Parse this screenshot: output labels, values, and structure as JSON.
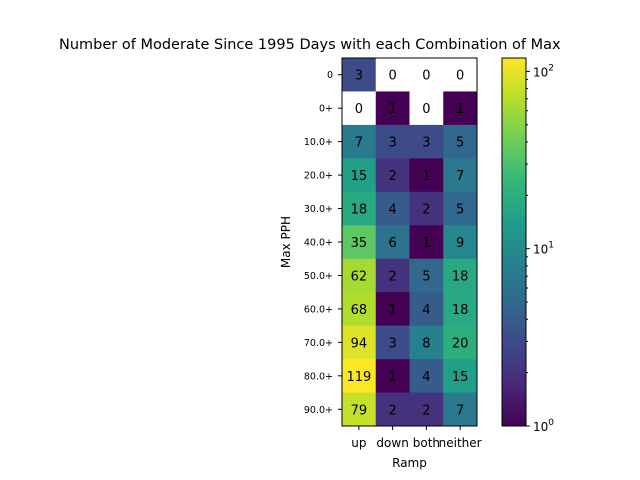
{
  "chart_data": {
    "type": "heatmap",
    "title": "Number of Moderate Since 1995 Days with each Combination of Max",
    "xlabel": "Ramp",
    "ylabel": "Max PPH",
    "x_categories": [
      "up",
      "down",
      "both",
      "neither"
    ],
    "y_categories": [
      "0",
      "0+",
      "10.0+",
      "20.0+",
      "30.0+",
      "40.0+",
      "50.0+",
      "60.0+",
      "70.0+",
      "80.0+",
      "90.0+"
    ],
    "values": [
      [
        3,
        0,
        0,
        0
      ],
      [
        0,
        1,
        0,
        1
      ],
      [
        7,
        3,
        3,
        5
      ],
      [
        15,
        2,
        1,
        7
      ],
      [
        18,
        4,
        2,
        5
      ],
      [
        35,
        6,
        1,
        9
      ],
      [
        62,
        2,
        5,
        18
      ],
      [
        68,
        1,
        4,
        18
      ],
      [
        94,
        3,
        8,
        20
      ],
      [
        119,
        1,
        4,
        15
      ],
      [
        79,
        2,
        2,
        7
      ]
    ],
    "colorscale": "viridis",
    "color_scale_type": "log",
    "color_range": [
      1,
      119
    ],
    "colorbar_ticks": [
      {
        "value": 1,
        "label": "10",
        "exp": "0"
      },
      {
        "value": 10,
        "label": "10",
        "exp": "1"
      },
      {
        "value": 100,
        "label": "10",
        "exp": "2"
      }
    ],
    "zero_color": "#ffffff"
  }
}
